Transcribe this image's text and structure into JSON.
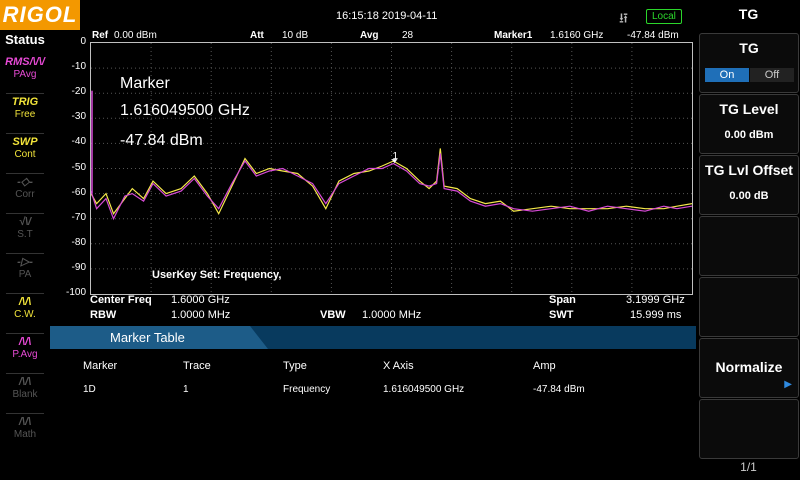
{
  "header": {
    "brand": "RIGOL",
    "datetime": "16:15:18 2019-04-11",
    "connection": "Local",
    "usb_icon": "usb-icon"
  },
  "status": {
    "title": "Status",
    "items": [
      {
        "glyph": "RMS/\\/\\/",
        "label": "PAvg",
        "color": "#e84ad6",
        "active": true
      },
      {
        "glyph": "TRIG",
        "label": "Free",
        "color": "#f2e43a",
        "active": true
      },
      {
        "glyph": "SWP",
        "label": "Cont",
        "color": "#f2e43a",
        "active": true
      },
      {
        "glyph": "-◇-",
        "label": "Corr",
        "color": "#555555",
        "active": false
      },
      {
        "glyph": "√\\/",
        "label": "S.T",
        "color": "#555555",
        "active": false
      },
      {
        "glyph": "-▷-",
        "label": "PA",
        "color": "#555555",
        "active": false
      },
      {
        "glyph": "/\\/\\",
        "label": "C.W.",
        "color": "#f2e43a",
        "active": true
      },
      {
        "glyph": "/\\/\\",
        "label": "P.Avg",
        "color": "#e84ad6",
        "active": true
      },
      {
        "glyph": "/\\/\\",
        "label": "Blank",
        "color": "#555555",
        "active": false
      },
      {
        "glyph": "/\\/\\",
        "label": "Math",
        "color": "#555555",
        "active": false
      }
    ]
  },
  "infobar": {
    "ref_label": "Ref",
    "ref_value": "0.00 dBm",
    "att_label": "Att",
    "att_value": "10 dB",
    "avg_label": "Avg",
    "avg_value": "28",
    "marker_label": "Marker1",
    "marker_freq": "1.6160 GHz",
    "marker_amp": "-47.84 dBm"
  },
  "chart_data": {
    "type": "line",
    "ylim": [
      -100,
      0
    ],
    "yticks": [
      "0",
      "-10",
      "-20",
      "-30",
      "-40",
      "-50",
      "-60",
      "-70",
      "-80",
      "-90",
      "-100"
    ],
    "xlim_ghz": [
      5e-05,
      3.19995
    ],
    "series": [
      {
        "color": "#f5e84a",
        "x": [
          0.0,
          0.03,
          0.08,
          0.12,
          0.18,
          0.22,
          0.28,
          0.33,
          0.4,
          0.48,
          0.55,
          0.62,
          0.68,
          0.75,
          0.82,
          0.88,
          0.95,
          1.02,
          1.1,
          1.18,
          1.25,
          1.32,
          1.4,
          1.48,
          1.55,
          1.61,
          1.68,
          1.75,
          1.8,
          1.84,
          1.86,
          1.88,
          1.95,
          2.02,
          2.1,
          2.18,
          2.25,
          2.35,
          2.45,
          2.55,
          2.65,
          2.75,
          2.85,
          2.95,
          3.05,
          3.12,
          3.2
        ],
        "y": [
          -60,
          -64,
          -60,
          -68,
          -62,
          -58,
          -62,
          -55,
          -60,
          -58,
          -53,
          -60,
          -68,
          -57,
          -46,
          -52,
          -50,
          -51,
          -52,
          -57,
          -66,
          -55,
          -52,
          -51,
          -49,
          -47,
          -50,
          -55,
          -58,
          -55,
          -42,
          -57,
          -58,
          -62,
          -64,
          -63,
          -67,
          -66,
          -65,
          -66,
          -66,
          -66,
          -65,
          -66,
          -66,
          -65,
          -64
        ]
      },
      {
        "color": "#d64ad6",
        "x": [
          0.0,
          0.03,
          0.08,
          0.12,
          0.18,
          0.22,
          0.28,
          0.33,
          0.4,
          0.48,
          0.55,
          0.62,
          0.68,
          0.75,
          0.82,
          0.88,
          0.95,
          1.02,
          1.1,
          1.18,
          1.25,
          1.32,
          1.4,
          1.48,
          1.55,
          1.61,
          1.68,
          1.75,
          1.8,
          1.84,
          1.86,
          1.88,
          1.95,
          2.02,
          2.1,
          2.18,
          2.25,
          2.35,
          2.45,
          2.55,
          2.65,
          2.75,
          2.85,
          2.95,
          3.05,
          3.12,
          3.2
        ],
        "y": [
          -59,
          -66,
          -62,
          -70,
          -61,
          -60,
          -63,
          -56,
          -61,
          -59,
          -54,
          -61,
          -66,
          -56,
          -47,
          -53,
          -51,
          -50,
          -53,
          -56,
          -64,
          -56,
          -53,
          -50,
          -50,
          -48,
          -51,
          -56,
          -57,
          -56,
          -44,
          -58,
          -59,
          -63,
          -65,
          -64,
          -66,
          -67,
          -66,
          -65,
          -67,
          -65,
          -66,
          -67,
          -65,
          -66,
          -65
        ]
      }
    ],
    "marker": {
      "id": "1",
      "x": 1.616,
      "y": -47.84
    }
  },
  "marker_readout": {
    "title": "Marker",
    "freq": "1.616049500 GHz",
    "amp": "-47.84 dBm"
  },
  "userkey": "UserKey Set:   Frequency,",
  "bottom": {
    "center_label": "Center Freq",
    "center_value": "1.6000 GHz",
    "span_label": "Span",
    "span_value": "3.1999 GHz",
    "rbw_label": "RBW",
    "rbw_value": "1.0000 MHz",
    "vbw_label": "VBW",
    "vbw_value": "1.0000 MHz",
    "swt_label": "SWT",
    "swt_value": "15.999 ms"
  },
  "marker_table": {
    "title": "Marker Table",
    "columns": [
      "Marker",
      "Trace",
      "Type",
      "X Axis",
      "Amp"
    ],
    "rows": [
      [
        "1D",
        "1",
        "Frequency",
        "1.616049500 GHz",
        "-47.84 dBm"
      ]
    ]
  },
  "menu": {
    "title": "TG",
    "tg_label": "TG",
    "tg_on": "On",
    "tg_off": "Off",
    "tg_level_label": "TG Level",
    "tg_level_value": "0.00 dBm",
    "tg_offset_label": "TG Lvl Offset",
    "tg_offset_value": "0.00 dB",
    "normalize_label": "Normalize",
    "page": "1/1"
  }
}
